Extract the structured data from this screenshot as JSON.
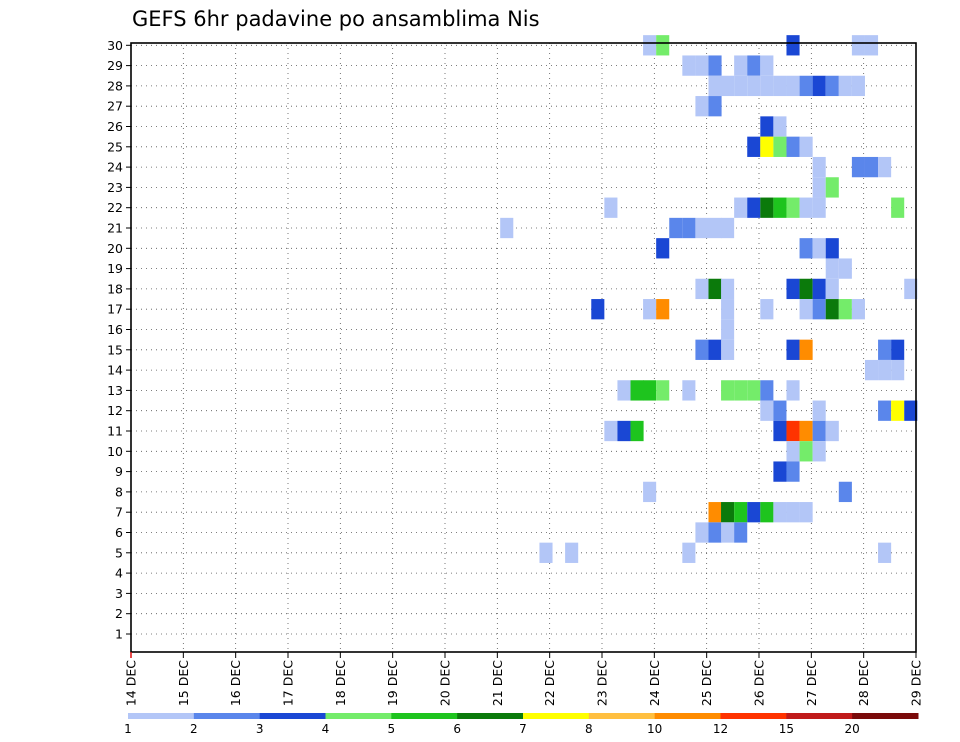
{
  "chart_data": {
    "type": "heatmap",
    "title": "GEFS 6hr padavine po ansamblima Nis",
    "xlabel": "",
    "ylabel": "",
    "x_tick_labels": [
      "14 DEC",
      "15 DEC",
      "16 DEC",
      "17 DEC",
      "18 DEC",
      "19 DEC",
      "20 DEC",
      "21 DEC",
      "22 DEC",
      "23 DEC",
      "24 DEC",
      "25 DEC",
      "26 DEC",
      "27 DEC",
      "28 DEC",
      "29 DEC"
    ],
    "x_range_days": [
      0,
      15
    ],
    "step_hours": 6,
    "y_members": [
      1,
      2,
      3,
      4,
      5,
      6,
      7,
      8,
      9,
      10,
      11,
      12,
      13,
      14,
      15,
      16,
      17,
      18,
      19,
      20,
      21,
      22,
      23,
      24,
      25,
      26,
      27,
      28,
      29,
      30
    ],
    "legend": {
      "labels": [
        "1",
        "2",
        "3",
        "4",
        "5",
        "6",
        "7",
        "8",
        "10",
        "12",
        "15",
        "20"
      ],
      "colors": [
        "#b3c6f7",
        "#5a86eb",
        "#1a47d4",
        "#74ec6a",
        "#1ec41e",
        "#0b7a0b",
        "#ffff00",
        "#ffbf40",
        "#ff8c00",
        "#ff3300",
        "#c01a1a",
        "#7a0a0a"
      ]
    },
    "cells_note": "each cell: [member, x_in_days_from_14_DEC_00Z, color_level_index]",
    "cells": [
      [
        30,
        9.91,
        0
      ],
      [
        30,
        10.16,
        3
      ],
      [
        30,
        12.65,
        2
      ],
      [
        30,
        13.9,
        0
      ],
      [
        30,
        14.15,
        0
      ],
      [
        29,
        10.66,
        0
      ],
      [
        29,
        10.91,
        0
      ],
      [
        29,
        11.16,
        1
      ],
      [
        29,
        11.65,
        0
      ],
      [
        29,
        11.9,
        1
      ],
      [
        29,
        12.15,
        0
      ],
      [
        28,
        11.16,
        0
      ],
      [
        28,
        11.4,
        0
      ],
      [
        28,
        11.65,
        0
      ],
      [
        28,
        11.9,
        0
      ],
      [
        28,
        12.15,
        0
      ],
      [
        28,
        12.4,
        0
      ],
      [
        28,
        12.9,
        1
      ],
      [
        28,
        13.15,
        2
      ],
      [
        28,
        13.4,
        1
      ],
      [
        28,
        13.65,
        0
      ],
      [
        28,
        12.65,
        0
      ],
      [
        28,
        13.9,
        0
      ],
      [
        27,
        10.91,
        0
      ],
      [
        27,
        11.16,
        1
      ],
      [
        26,
        12.15,
        2
      ],
      [
        26,
        12.4,
        0
      ],
      [
        25,
        11.9,
        2
      ],
      [
        25,
        12.15,
        6
      ],
      [
        25,
        12.4,
        3
      ],
      [
        25,
        12.65,
        1
      ],
      [
        25,
        12.9,
        0
      ],
      [
        24,
        13.15,
        0
      ],
      [
        24,
        13.9,
        1
      ],
      [
        24,
        14.15,
        1
      ],
      [
        24,
        14.4,
        0
      ],
      [
        23,
        13.15,
        0
      ],
      [
        23,
        13.4,
        3
      ],
      [
        22,
        9.17,
        0
      ],
      [
        22,
        11.65,
        0
      ],
      [
        22,
        11.9,
        2
      ],
      [
        22,
        12.15,
        5
      ],
      [
        22,
        12.4,
        4
      ],
      [
        22,
        12.65,
        3
      ],
      [
        22,
        12.9,
        0
      ],
      [
        22,
        13.15,
        0
      ],
      [
        22,
        14.65,
        3
      ],
      [
        21,
        7.18,
        0
      ],
      [
        21,
        10.41,
        1
      ],
      [
        21,
        10.66,
        1
      ],
      [
        21,
        10.91,
        0
      ],
      [
        21,
        11.16,
        0
      ],
      [
        21,
        11.4,
        0
      ],
      [
        20,
        10.16,
        2
      ],
      [
        20,
        12.9,
        1
      ],
      [
        20,
        13.15,
        0
      ],
      [
        20,
        13.4,
        2
      ],
      [
        19,
        13.4,
        0
      ],
      [
        19,
        13.65,
        0
      ],
      [
        18,
        10.91,
        0
      ],
      [
        18,
        11.16,
        5
      ],
      [
        18,
        11.4,
        0
      ],
      [
        18,
        12.65,
        2
      ],
      [
        18,
        12.9,
        5
      ],
      [
        18,
        13.15,
        2
      ],
      [
        18,
        13.4,
        0
      ],
      [
        18,
        14.9,
        0
      ],
      [
        17,
        8.92,
        2
      ],
      [
        17,
        9.91,
        0
      ],
      [
        17,
        10.16,
        8
      ],
      [
        17,
        11.4,
        0
      ],
      [
        17,
        12.15,
        0
      ],
      [
        17,
        12.9,
        0
      ],
      [
        17,
        13.15,
        1
      ],
      [
        17,
        13.4,
        5
      ],
      [
        17,
        13.65,
        3
      ],
      [
        17,
        13.9,
        0
      ],
      [
        16,
        11.4,
        0
      ],
      [
        15,
        10.91,
        1
      ],
      [
        15,
        11.16,
        2
      ],
      [
        15,
        11.4,
        0
      ],
      [
        15,
        12.65,
        2
      ],
      [
        15,
        12.9,
        8
      ],
      [
        15,
        14.4,
        1
      ],
      [
        15,
        14.65,
        2
      ],
      [
        14,
        14.15,
        0
      ],
      [
        14,
        14.4,
        0
      ],
      [
        14,
        14.65,
        0
      ],
      [
        13,
        9.42,
        0
      ],
      [
        13,
        9.67,
        4
      ],
      [
        13,
        9.91,
        4
      ],
      [
        13,
        10.16,
        3
      ],
      [
        13,
        10.66,
        0
      ],
      [
        13,
        11.4,
        3
      ],
      [
        13,
        11.65,
        3
      ],
      [
        13,
        11.9,
        3
      ],
      [
        13,
        12.15,
        1
      ],
      [
        13,
        12.65,
        0
      ],
      [
        12,
        12.15,
        0
      ],
      [
        12,
        12.4,
        1
      ],
      [
        12,
        13.15,
        0
      ],
      [
        12,
        14.4,
        1
      ],
      [
        12,
        14.65,
        6
      ],
      [
        12,
        14.9,
        2
      ],
      [
        11,
        9.17,
        0
      ],
      [
        11,
        9.42,
        2
      ],
      [
        11,
        9.67,
        4
      ],
      [
        11,
        12.4,
        2
      ],
      [
        11,
        12.65,
        9
      ],
      [
        11,
        12.9,
        8
      ],
      [
        11,
        13.15,
        1
      ],
      [
        11,
        13.4,
        0
      ],
      [
        10,
        12.65,
        0
      ],
      [
        10,
        12.9,
        3
      ],
      [
        10,
        13.15,
        0
      ],
      [
        9,
        12.4,
        2
      ],
      [
        9,
        12.65,
        1
      ],
      [
        8,
        9.91,
        0
      ],
      [
        8,
        13.65,
        1
      ],
      [
        7,
        11.16,
        8
      ],
      [
        7,
        11.4,
        5
      ],
      [
        7,
        11.65,
        4
      ],
      [
        7,
        11.9,
        2
      ],
      [
        7,
        12.15,
        4
      ],
      [
        7,
        12.4,
        0
      ],
      [
        7,
        12.65,
        0
      ],
      [
        7,
        12.9,
        0
      ],
      [
        6,
        10.91,
        0
      ],
      [
        6,
        11.16,
        1
      ],
      [
        6,
        11.4,
        0
      ],
      [
        6,
        11.65,
        1
      ],
      [
        5,
        7.93,
        0
      ],
      [
        5,
        8.42,
        0
      ],
      [
        5,
        10.66,
        0
      ],
      [
        5,
        14.4,
        0
      ]
    ]
  }
}
